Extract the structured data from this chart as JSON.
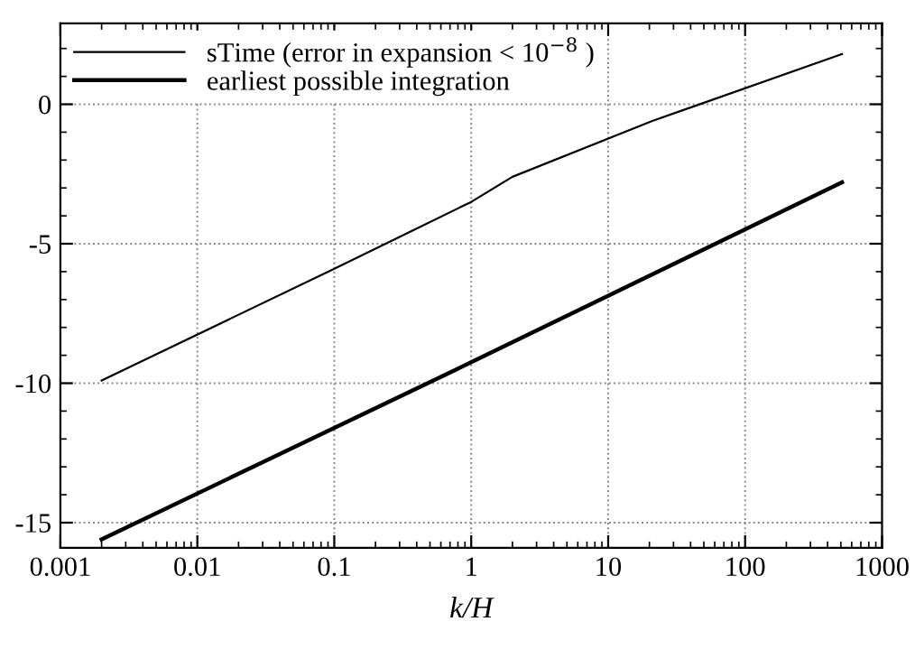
{
  "chart_data": {
    "type": "line",
    "xlabel": "k/H",
    "log": "x",
    "xlim": [
      0.001,
      1000
    ],
    "xticks": [
      0.001,
      0.01,
      0.1,
      1,
      10,
      100,
      1000
    ],
    "ylim": [
      -15.9,
      2.9
    ],
    "yticks": [
      -15,
      -10,
      -5,
      0
    ],
    "grid": true,
    "legend": "top left",
    "line_style": "solid",
    "marker": "none",
    "series": [
      {
        "name": "sTime (error in expansion < 10$^{−8}$ )",
        "color": "#000000",
        "x": [
          0.002,
          0.1,
          1,
          2,
          21,
          510
        ],
        "values": [
          -9.9,
          -5.9,
          -3.5,
          -2.6,
          -0.6,
          1.8
        ]
      },
      {
        "name": "earliest possible integration",
        "color": "#000000",
        "x": [
          0.002,
          1,
          510
        ],
        "values": [
          -15.6,
          -9.25,
          -2.8
        ]
      }
    ]
  }
}
